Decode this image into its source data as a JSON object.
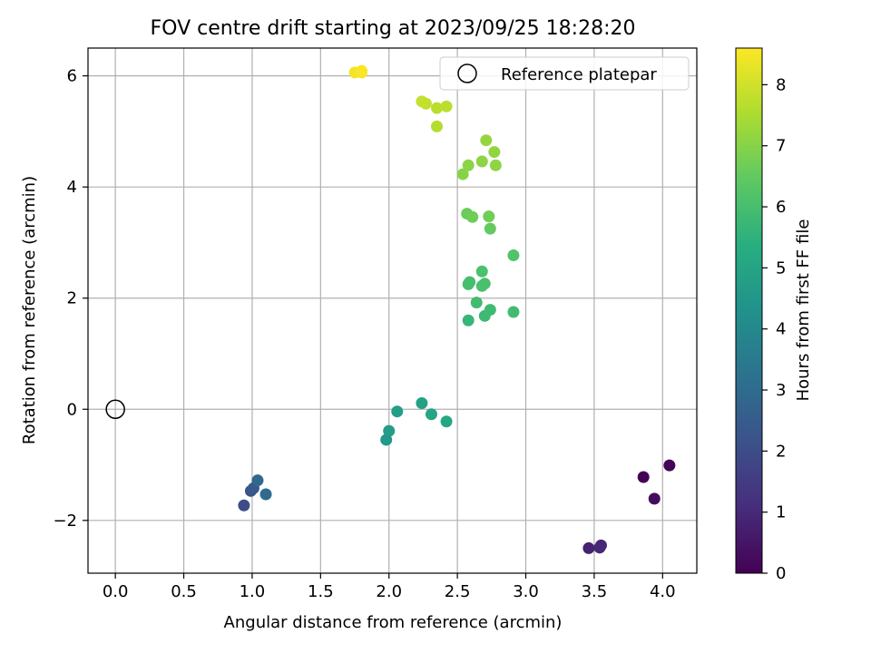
{
  "chart_data": {
    "type": "scatter",
    "title": "FOV centre drift starting at 2023/09/25 18:28:20",
    "xlabel": "Angular distance from reference (arcmin)",
    "ylabel": "Rotation from reference (arcmin)",
    "xlim": [
      -0.2,
      4.25
    ],
    "ylim": [
      -2.95,
      6.5
    ],
    "xticks": [
      0.0,
      0.5,
      1.0,
      1.5,
      2.0,
      2.5,
      3.0,
      3.5,
      4.0
    ],
    "xtick_labels": [
      "0.0",
      "0.5",
      "1.0",
      "1.5",
      "2.0",
      "2.5",
      "3.0",
      "3.5",
      "4.0"
    ],
    "yticks": [
      -2,
      0,
      2,
      4,
      6
    ],
    "ytick_labels": [
      "−2",
      "0",
      "2",
      "4",
      "6"
    ],
    "grid": true,
    "legend": {
      "placement": "top-right",
      "entries": [
        "Reference platepar"
      ]
    },
    "reference_point": {
      "x": 0.0,
      "y": 0.0,
      "label": "Reference platepar"
    },
    "colorbar": {
      "label": "Hours from first FF file",
      "range": [
        0,
        8.6
      ],
      "ticks": [
        0,
        1,
        2,
        3,
        4,
        5,
        6,
        7,
        8
      ],
      "tick_labels": [
        "0",
        "1",
        "2",
        "3",
        "4",
        "5",
        "6",
        "7",
        "8"
      ],
      "colormap": "viridis"
    },
    "points": [
      {
        "x": 3.86,
        "y": -1.22,
        "h": 0.02
      },
      {
        "x": 4.05,
        "y": -1.01,
        "h": 0.1
      },
      {
        "x": 3.94,
        "y": -1.61,
        "h": 0.25
      },
      {
        "x": 3.46,
        "y": -2.5,
        "h": 0.8
      },
      {
        "x": 3.55,
        "y": -2.45,
        "h": 0.9
      },
      {
        "x": 3.54,
        "y": -2.49,
        "h": 0.95
      },
      {
        "x": 0.94,
        "y": -1.73,
        "h": 2.0
      },
      {
        "x": 0.99,
        "y": -1.47,
        "h": 2.2
      },
      {
        "x": 1.01,
        "y": -1.42,
        "h": 2.4
      },
      {
        "x": 1.04,
        "y": -1.28,
        "h": 2.9
      },
      {
        "x": 1.1,
        "y": -1.53,
        "h": 3.0
      },
      {
        "x": 1.98,
        "y": -0.55,
        "h": 4.6
      },
      {
        "x": 2.0,
        "y": -0.39,
        "h": 4.7
      },
      {
        "x": 2.06,
        "y": -0.04,
        "h": 4.8
      },
      {
        "x": 2.24,
        "y": 0.11,
        "h": 4.9
      },
      {
        "x": 2.31,
        "y": -0.09,
        "h": 5.0
      },
      {
        "x": 2.42,
        "y": -0.22,
        "h": 5.1
      },
      {
        "x": 2.58,
        "y": 1.6,
        "h": 5.7
      },
      {
        "x": 2.7,
        "y": 1.68,
        "h": 5.8
      },
      {
        "x": 2.74,
        "y": 1.79,
        "h": 5.85
      },
      {
        "x": 2.91,
        "y": 1.75,
        "h": 5.9
      },
      {
        "x": 2.64,
        "y": 1.92,
        "h": 5.9
      },
      {
        "x": 2.58,
        "y": 2.25,
        "h": 5.95
      },
      {
        "x": 2.59,
        "y": 2.29,
        "h": 6.0
      },
      {
        "x": 2.68,
        "y": 2.22,
        "h": 6.05
      },
      {
        "x": 2.7,
        "y": 2.26,
        "h": 6.05
      },
      {
        "x": 2.68,
        "y": 2.48,
        "h": 6.1
      },
      {
        "x": 2.91,
        "y": 2.77,
        "h": 6.2
      },
      {
        "x": 2.74,
        "y": 3.25,
        "h": 6.5
      },
      {
        "x": 2.57,
        "y": 3.52,
        "h": 6.6
      },
      {
        "x": 2.61,
        "y": 3.46,
        "h": 6.65
      },
      {
        "x": 2.73,
        "y": 3.47,
        "h": 6.7
      },
      {
        "x": 2.54,
        "y": 4.23,
        "h": 7.0
      },
      {
        "x": 2.58,
        "y": 4.39,
        "h": 7.05
      },
      {
        "x": 2.68,
        "y": 4.46,
        "h": 7.1
      },
      {
        "x": 2.78,
        "y": 4.39,
        "h": 7.1
      },
      {
        "x": 2.77,
        "y": 4.63,
        "h": 7.15
      },
      {
        "x": 2.71,
        "y": 4.84,
        "h": 7.2
      },
      {
        "x": 2.35,
        "y": 5.09,
        "h": 7.6
      },
      {
        "x": 2.35,
        "y": 5.42,
        "h": 7.7
      },
      {
        "x": 2.42,
        "y": 5.45,
        "h": 7.7
      },
      {
        "x": 2.27,
        "y": 5.5,
        "h": 7.8
      },
      {
        "x": 2.24,
        "y": 5.54,
        "h": 7.85
      },
      {
        "x": 1.75,
        "y": 6.06,
        "h": 8.45
      },
      {
        "x": 1.8,
        "y": 6.06,
        "h": 8.5
      },
      {
        "x": 1.8,
        "y": 6.09,
        "h": 8.55
      }
    ]
  }
}
